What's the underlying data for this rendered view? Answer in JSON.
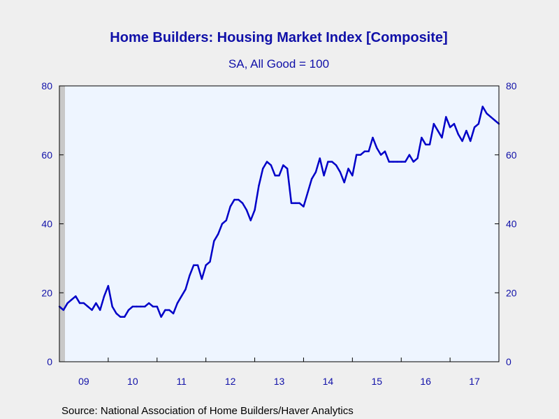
{
  "chart_data": {
    "type": "line",
    "title": "Home Builders: Housing Market Index [Composite]",
    "subtitle": "SA, All Good = 100",
    "source": "Source:  National Association of Home Builders/Haver Analytics",
    "x_tick_labels": [
      "09",
      "10",
      "11",
      "12",
      "13",
      "14",
      "15",
      "16",
      "17"
    ],
    "y_tick_labels_left": [
      "0",
      "20",
      "40",
      "60",
      "80"
    ],
    "y_tick_labels_right": [
      "0",
      "20",
      "40",
      "60",
      "80"
    ],
    "ylim": [
      0,
      80
    ],
    "x_range": [
      "2009-01",
      "2017-12"
    ],
    "recession_shading": {
      "start": "2009-01",
      "end": "2009-06"
    },
    "grid": false,
    "colors": {
      "line": "#0000c8",
      "plot_background": "#eef5ff",
      "page_background": "#efefef",
      "recession": "#c8c8c8",
      "text": "#1010a8"
    },
    "series": [
      {
        "values": [
          16,
          15,
          17,
          18,
          19,
          17,
          17,
          16,
          15,
          17,
          15,
          19,
          22,
          16,
          14,
          13,
          13,
          15,
          16,
          16,
          16,
          16,
          17,
          16,
          16,
          13,
          15,
          15,
          14,
          17,
          19,
          21,
          25,
          28,
          28,
          24,
          28,
          29,
          35,
          37,
          40,
          41,
          45,
          47,
          47,
          46,
          44,
          41,
          44,
          51,
          56,
          58,
          57,
          54,
          54,
          57,
          56,
          46,
          46,
          46,
          45,
          49,
          53,
          55,
          59,
          54,
          58,
          58,
          57,
          55,
          52,
          56,
          54,
          60,
          60,
          61,
          61,
          65,
          62,
          60,
          61,
          58,
          58,
          58,
          58,
          58,
          60,
          58,
          59,
          65,
          63,
          63,
          69,
          67,
          65,
          71,
          68,
          69,
          66,
          64,
          67,
          64,
          68,
          69,
          74,
          72,
          71,
          70,
          69
        ]
      }
    ]
  }
}
